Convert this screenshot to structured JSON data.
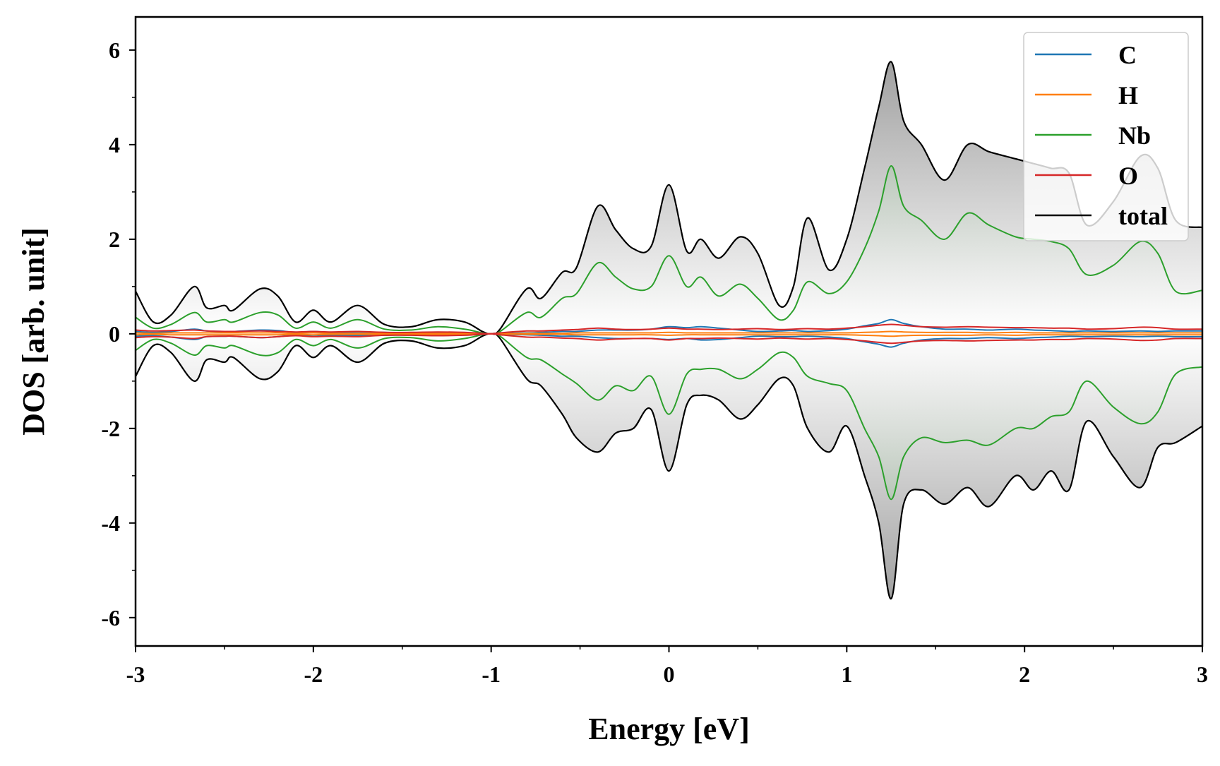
{
  "chart_data": {
    "type": "line",
    "title": "",
    "xlabel": "Energy [eV]",
    "ylabel": "DOS [arb. unit]",
    "xlim": [
      -3,
      3
    ],
    "ylim": [
      -6.6,
      6.7
    ],
    "grid": false,
    "legend_position": "top-right",
    "x_ticks": [
      -3,
      -2,
      -1,
      0,
      1,
      2,
      3
    ],
    "x_tick_labels": [
      "-3",
      "-2",
      "-1",
      "0",
      "1",
      "2",
      "3"
    ],
    "y_ticks": [
      -6,
      -4,
      -2,
      0,
      2,
      4,
      6
    ],
    "y_tick_labels": [
      "-6",
      "-4",
      "-2",
      "0",
      "2",
      "4",
      "6"
    ],
    "x": [
      -3.0,
      -2.9,
      -2.8,
      -2.67,
      -2.6,
      -2.5,
      -2.45,
      -2.3,
      -2.2,
      -2.1,
      -2.0,
      -1.9,
      -1.75,
      -1.6,
      -1.45,
      -1.3,
      -1.15,
      -1.05,
      -1.0,
      -0.95,
      -0.8,
      -0.72,
      -0.6,
      -0.52,
      -0.4,
      -0.3,
      -0.2,
      -0.1,
      0.0,
      0.1,
      0.18,
      0.28,
      0.4,
      0.5,
      0.62,
      0.7,
      0.78,
      0.9,
      1.0,
      1.1,
      1.18,
      1.25,
      1.32,
      1.42,
      1.55,
      1.68,
      1.8,
      1.95,
      2.05,
      2.15,
      2.25,
      2.35,
      2.5,
      2.65,
      2.75,
      2.85,
      3.0
    ],
    "series": [
      {
        "name": "C",
        "color": "#1f77b4",
        "up": [
          0.05,
          0.03,
          0.05,
          0.1,
          0.06,
          0.05,
          0.05,
          0.08,
          0.07,
          0.03,
          0.05,
          0.03,
          0.04,
          0.03,
          0.02,
          0.03,
          0.02,
          0.01,
          0.0,
          0.01,
          0.02,
          0.03,
          0.05,
          0.05,
          0.08,
          0.08,
          0.08,
          0.1,
          0.15,
          0.13,
          0.15,
          0.12,
          0.08,
          0.05,
          0.06,
          0.07,
          0.05,
          0.07,
          0.1,
          0.17,
          0.22,
          0.3,
          0.22,
          0.15,
          0.1,
          0.1,
          0.08,
          0.1,
          0.08,
          0.07,
          0.05,
          0.06,
          0.05,
          0.06,
          0.05,
          0.06,
          0.06
        ],
        "down": [
          -0.05,
          -0.04,
          -0.07,
          -0.12,
          -0.06,
          -0.05,
          -0.05,
          -0.08,
          -0.06,
          -0.03,
          -0.05,
          -0.03,
          -0.04,
          -0.03,
          -0.02,
          -0.03,
          -0.02,
          -0.01,
          0.0,
          -0.01,
          -0.02,
          -0.03,
          -0.05,
          -0.05,
          -0.08,
          -0.1,
          -0.1,
          -0.1,
          -0.12,
          -0.1,
          -0.13,
          -0.12,
          -0.08,
          -0.05,
          -0.06,
          -0.06,
          -0.05,
          -0.07,
          -0.1,
          -0.17,
          -0.22,
          -0.28,
          -0.2,
          -0.13,
          -0.1,
          -0.1,
          -0.08,
          -0.1,
          -0.08,
          -0.07,
          -0.05,
          -0.06,
          -0.05,
          -0.06,
          -0.05,
          -0.06,
          -0.06
        ]
      },
      {
        "name": "H",
        "color": "#ff7f0e",
        "up": [
          0.02,
          0.01,
          0.02,
          0.02,
          0.02,
          0.02,
          0.02,
          0.02,
          0.02,
          0.01,
          0.02,
          0.01,
          0.01,
          0.01,
          0.01,
          0.01,
          0.01,
          0.0,
          0.0,
          0.0,
          0.01,
          0.01,
          0.01,
          0.02,
          0.02,
          0.02,
          0.02,
          0.02,
          0.03,
          0.02,
          0.02,
          0.02,
          0.02,
          0.02,
          0.02,
          0.02,
          0.02,
          0.02,
          0.02,
          0.03,
          0.04,
          0.05,
          0.04,
          0.03,
          0.03,
          0.03,
          0.02,
          0.03,
          0.02,
          0.02,
          0.02,
          0.02,
          0.02,
          0.02,
          0.02,
          0.02,
          0.02
        ],
        "down": [
          -0.02,
          -0.01,
          -0.02,
          -0.02,
          -0.02,
          -0.02,
          -0.02,
          -0.02,
          -0.02,
          -0.01,
          -0.02,
          -0.01,
          -0.01,
          -0.01,
          -0.01,
          -0.01,
          -0.01,
          0.0,
          0.0,
          0.0,
          -0.01,
          -0.01,
          -0.01,
          -0.02,
          -0.02,
          -0.02,
          -0.02,
          -0.02,
          -0.03,
          -0.02,
          -0.02,
          -0.02,
          -0.02,
          -0.02,
          -0.02,
          -0.02,
          -0.02,
          -0.02,
          -0.02,
          -0.03,
          -0.04,
          -0.05,
          -0.04,
          -0.03,
          -0.03,
          -0.03,
          -0.02,
          -0.03,
          -0.02,
          -0.02,
          -0.02,
          -0.02,
          -0.02,
          -0.02,
          -0.02,
          -0.02,
          -0.02
        ]
      },
      {
        "name": "Nb",
        "color": "#2ca02c",
        "up": [
          0.35,
          0.12,
          0.2,
          0.45,
          0.25,
          0.3,
          0.25,
          0.45,
          0.4,
          0.12,
          0.25,
          0.12,
          0.3,
          0.1,
          0.08,
          0.15,
          0.1,
          0.02,
          0.0,
          0.05,
          0.45,
          0.35,
          0.75,
          0.85,
          1.5,
          1.2,
          0.95,
          1.0,
          1.65,
          1.0,
          1.2,
          0.8,
          1.05,
          0.75,
          0.3,
          0.5,
          1.1,
          0.85,
          1.1,
          1.8,
          2.6,
          3.55,
          2.7,
          2.4,
          2.0,
          2.55,
          2.3,
          2.05,
          2.0,
          1.95,
          1.8,
          1.25,
          1.45,
          1.95,
          1.7,
          0.9,
          0.92
        ],
        "down": [
          -0.35,
          -0.12,
          -0.2,
          -0.45,
          -0.25,
          -0.3,
          -0.25,
          -0.45,
          -0.4,
          -0.12,
          -0.25,
          -0.12,
          -0.3,
          -0.1,
          -0.08,
          -0.15,
          -0.1,
          -0.02,
          0.0,
          -0.05,
          -0.5,
          -0.55,
          -0.85,
          -1.05,
          -1.4,
          -1.1,
          -1.2,
          -0.9,
          -1.7,
          -0.85,
          -0.75,
          -0.75,
          -0.95,
          -0.75,
          -0.4,
          -0.5,
          -0.9,
          -1.05,
          -1.2,
          -2.0,
          -2.6,
          -3.5,
          -2.6,
          -2.2,
          -2.3,
          -2.25,
          -2.35,
          -2.0,
          -2.0,
          -1.75,
          -1.65,
          -1.0,
          -1.55,
          -1.9,
          -1.65,
          -0.85,
          -0.7
        ]
      },
      {
        "name": "O",
        "color": "#d62728",
        "up": [
          0.08,
          0.06,
          0.07,
          0.08,
          0.06,
          0.05,
          0.05,
          0.06,
          0.05,
          0.04,
          0.05,
          0.04,
          0.05,
          0.03,
          0.03,
          0.04,
          0.03,
          0.01,
          0.0,
          0.02,
          0.06,
          0.06,
          0.08,
          0.09,
          0.12,
          0.1,
          0.09,
          0.1,
          0.12,
          0.1,
          0.1,
          0.09,
          0.1,
          0.11,
          0.09,
          0.1,
          0.11,
          0.1,
          0.12,
          0.15,
          0.18,
          0.2,
          0.18,
          0.15,
          0.14,
          0.15,
          0.14,
          0.13,
          0.13,
          0.12,
          0.12,
          0.1,
          0.11,
          0.14,
          0.13,
          0.1,
          0.1
        ],
        "down": [
          -0.08,
          -0.06,
          -0.07,
          -0.1,
          -0.06,
          -0.05,
          -0.05,
          -0.08,
          -0.06,
          -0.04,
          -0.06,
          -0.05,
          -0.06,
          -0.03,
          -0.03,
          -0.04,
          -0.03,
          -0.01,
          0.0,
          -0.02,
          -0.07,
          -0.07,
          -0.09,
          -0.1,
          -0.13,
          -0.11,
          -0.1,
          -0.1,
          -0.13,
          -0.1,
          -0.1,
          -0.09,
          -0.1,
          -0.11,
          -0.09,
          -0.1,
          -0.11,
          -0.1,
          -0.12,
          -0.15,
          -0.18,
          -0.2,
          -0.18,
          -0.15,
          -0.14,
          -0.15,
          -0.14,
          -0.13,
          -0.13,
          -0.12,
          -0.12,
          -0.1,
          -0.11,
          -0.14,
          -0.13,
          -0.1,
          -0.1
        ]
      },
      {
        "name": "total",
        "color": "#000000",
        "up": [
          0.9,
          0.25,
          0.4,
          1.0,
          0.55,
          0.6,
          0.5,
          0.95,
          0.8,
          0.25,
          0.5,
          0.25,
          0.6,
          0.2,
          0.15,
          0.3,
          0.25,
          0.05,
          0.0,
          0.1,
          0.95,
          0.75,
          1.3,
          1.4,
          2.7,
          2.2,
          1.8,
          1.85,
          3.15,
          1.75,
          2.0,
          1.6,
          2.05,
          1.7,
          0.6,
          1.0,
          2.45,
          1.35,
          2.0,
          3.5,
          4.8,
          5.75,
          4.5,
          4.0,
          3.25,
          4.0,
          3.85,
          3.7,
          3.6,
          3.5,
          3.4,
          2.3,
          2.8,
          3.75,
          3.5,
          2.4,
          2.25
        ],
        "down": [
          -0.9,
          -0.25,
          -0.4,
          -1.0,
          -0.55,
          -0.6,
          -0.5,
          -0.95,
          -0.8,
          -0.25,
          -0.5,
          -0.25,
          -0.6,
          -0.2,
          -0.15,
          -0.3,
          -0.25,
          -0.05,
          0.0,
          -0.1,
          -0.95,
          -1.1,
          -1.7,
          -2.2,
          -2.5,
          -2.1,
          -2.0,
          -1.6,
          -2.9,
          -1.5,
          -1.3,
          -1.4,
          -1.8,
          -1.5,
          -0.95,
          -1.1,
          -2.0,
          -2.5,
          -1.95,
          -3.0,
          -4.0,
          -5.6,
          -3.6,
          -3.3,
          -3.6,
          -3.25,
          -3.65,
          -3.0,
          -3.3,
          -2.9,
          -3.3,
          -1.85,
          -2.6,
          -3.25,
          -2.4,
          -2.3,
          -1.95
        ]
      }
    ]
  }
}
